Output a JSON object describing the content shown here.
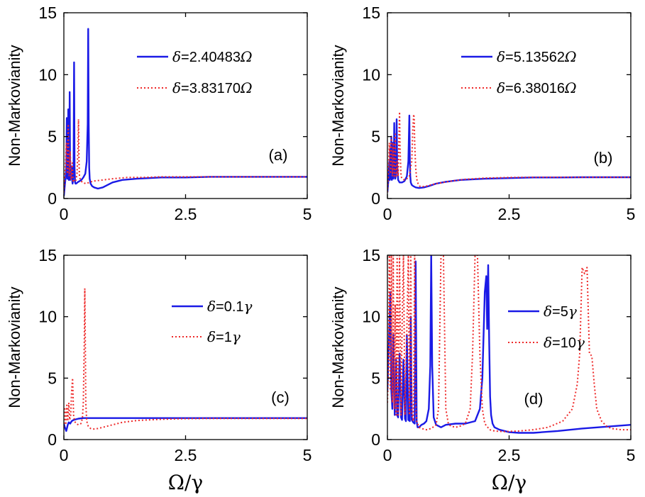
{
  "chart_data": [
    {
      "type": "line",
      "panel": "(a)",
      "xlabel": "",
      "ylabel": "Non-Markovianity",
      "xlim": [
        0,
        5
      ],
      "ylim": [
        0,
        15
      ],
      "xticks": [
        "0",
        "2.5",
        "5"
      ],
      "yticks": [
        "0",
        "5",
        "10",
        "15"
      ],
      "legend_position": "top-right",
      "series": [
        {
          "name": "δ=2.40483Ω",
          "symbol": "δ",
          "value": "=2.40483",
          "unit": "Ω",
          "style": "solid",
          "color": "#1a1ae6",
          "x": [
            0,
            0.03,
            0.05,
            0.06,
            0.07,
            0.08,
            0.09,
            0.1,
            0.11,
            0.12,
            0.13,
            0.14,
            0.15,
            0.16,
            0.17,
            0.18,
            0.19,
            0.2,
            0.21,
            0.22,
            0.23,
            0.24,
            0.25,
            0.28,
            0.32,
            0.36,
            0.4,
            0.44,
            0.47,
            0.49,
            0.5,
            0.51,
            0.52,
            0.53,
            0.55,
            0.58,
            0.62,
            0.7,
            0.8,
            0.9,
            1.0,
            1.2,
            1.5,
            2.0,
            2.5,
            3.0,
            3.5,
            4.0,
            4.5,
            5.0
          ],
          "y": [
            0.2,
            1.5,
            2.5,
            6.5,
            1.6,
            2.0,
            7.2,
            1.5,
            2.0,
            8.6,
            1.5,
            1.8,
            2.0,
            2.6,
            1.5,
            1.2,
            1.5,
            3.0,
            11.0,
            2.5,
            1.3,
            1.2,
            1.2,
            1.3,
            1.4,
            1.5,
            1.7,
            2.0,
            3.0,
            6.0,
            13.7,
            6.0,
            2.5,
            1.6,
            1.2,
            1.0,
            0.9,
            0.8,
            0.9,
            1.1,
            1.3,
            1.5,
            1.6,
            1.7,
            1.7,
            1.75,
            1.75,
            1.75,
            1.75,
            1.75
          ]
        },
        {
          "name": "δ=3.83170Ω",
          "symbol": "δ",
          "value": "=3.83170",
          "unit": "Ω",
          "style": "dotted",
          "color": "#ee2a2a",
          "x": [
            0,
            0.03,
            0.05,
            0.07,
            0.09,
            0.11,
            0.13,
            0.15,
            0.17,
            0.19,
            0.21,
            0.23,
            0.25,
            0.27,
            0.29,
            0.3,
            0.31,
            0.32,
            0.34,
            0.38,
            0.45,
            0.6,
            0.8,
            1.0,
            1.3,
            1.6,
            2.0,
            2.5,
            3.0,
            3.5,
            4.0,
            4.5,
            5.0
          ],
          "y": [
            0.5,
            2.5,
            4.5,
            2.0,
            6.0,
            1.8,
            3.8,
            1.5,
            3.0,
            1.3,
            1.5,
            1.4,
            1.5,
            2.0,
            4.0,
            6.4,
            3.0,
            1.8,
            1.5,
            1.3,
            1.2,
            1.4,
            1.5,
            1.6,
            1.7,
            1.7,
            1.75,
            1.75,
            1.75,
            1.75,
            1.75,
            1.75,
            1.75
          ]
        }
      ]
    },
    {
      "type": "line",
      "panel": "(b)",
      "xlabel": "",
      "ylabel": "Non-Markovianity",
      "xlim": [
        0,
        5
      ],
      "ylim": [
        0,
        15
      ],
      "xticks": [
        "0",
        "2.5",
        "5"
      ],
      "yticks": [
        "0",
        "5",
        "10",
        "15"
      ],
      "legend_position": "top-right",
      "series": [
        {
          "name": "δ=5.13562Ω",
          "symbol": "δ",
          "value": "=5.13562",
          "unit": "Ω",
          "style": "solid",
          "color": "#1a1ae6",
          "x": [
            0,
            0.02,
            0.04,
            0.05,
            0.06,
            0.07,
            0.08,
            0.09,
            0.1,
            0.11,
            0.12,
            0.13,
            0.14,
            0.15,
            0.16,
            0.17,
            0.18,
            0.19,
            0.2,
            0.22,
            0.25,
            0.3,
            0.35,
            0.4,
            0.43,
            0.45,
            0.46,
            0.47,
            0.48,
            0.5,
            0.53,
            0.58,
            0.65,
            0.75,
            0.85,
            1.0,
            1.2,
            1.5,
            2.0,
            2.5,
            3.0,
            3.5,
            4.0,
            4.5,
            5.0
          ],
          "y": [
            0.5,
            1.5,
            3.0,
            1.5,
            4.0,
            1.6,
            5.0,
            1.5,
            2.0,
            4.5,
            1.6,
            2.5,
            6.1,
            2.0,
            1.6,
            1.8,
            2.8,
            6.4,
            2.8,
            1.5,
            1.3,
            1.3,
            1.4,
            1.8,
            3.0,
            6.7,
            3.0,
            1.8,
            1.3,
            1.1,
            1.0,
            0.9,
            0.85,
            0.9,
            1.0,
            1.2,
            1.35,
            1.5,
            1.6,
            1.65,
            1.7,
            1.7,
            1.72,
            1.72,
            1.72
          ]
        },
        {
          "name": "δ=6.38016Ω",
          "symbol": "δ",
          "value": "=6.38016",
          "unit": "Ω",
          "style": "dotted",
          "color": "#ee2a2a",
          "x": [
            0,
            0.02,
            0.04,
            0.06,
            0.08,
            0.1,
            0.12,
            0.14,
            0.16,
            0.18,
            0.2,
            0.22,
            0.24,
            0.25,
            0.26,
            0.28,
            0.3,
            0.35,
            0.4,
            0.45,
            0.5,
            0.52,
            0.54,
            0.55,
            0.56,
            0.58,
            0.6,
            0.63,
            0.66,
            0.7,
            0.8,
            1.0,
            1.3,
            1.6,
            2.0,
            2.5,
            3.0,
            3.5,
            4.0,
            4.5,
            5.0
          ],
          "y": [
            0.5,
            2.0,
            4.5,
            2.0,
            5.0,
            1.8,
            4.5,
            1.8,
            5.2,
            1.8,
            3.0,
            1.8,
            5.5,
            7.0,
            4.0,
            1.8,
            1.6,
            1.5,
            1.6,
            1.8,
            3.0,
            5.5,
            6.8,
            6.5,
            4.5,
            2.5,
            1.6,
            1.2,
            1.0,
            0.95,
            1.0,
            1.2,
            1.4,
            1.55,
            1.65,
            1.7,
            1.72,
            1.72,
            1.72,
            1.72,
            1.72
          ]
        }
      ]
    },
    {
      "type": "line",
      "panel": "(c)",
      "xlabel": "Ω/γ",
      "ylabel": "Non-Markovianity",
      "xlim": [
        0,
        5
      ],
      "ylim": [
        0,
        15
      ],
      "xticks": [
        "0",
        "2.5",
        "5"
      ],
      "yticks": [
        "0",
        "5",
        "10",
        "15"
      ],
      "legend_position": "top-right",
      "series": [
        {
          "name": "δ=0.1γ",
          "symbol": "δ",
          "value": "=0.1",
          "unit": "γ",
          "style": "solid",
          "color": "#1a1ae6",
          "x": [
            0,
            0.02,
            0.05,
            0.08,
            0.1,
            0.13,
            0.16,
            0.2,
            0.25,
            0.3,
            0.4,
            0.5,
            0.6,
            0.8,
            1.0,
            1.5,
            2.0,
            2.5,
            3.0,
            3.5,
            4.0,
            4.5,
            5.0
          ],
          "y": [
            1.3,
            1.0,
            0.7,
            1.2,
            1.4,
            1.3,
            1.5,
            1.6,
            1.65,
            1.7,
            1.75,
            1.75,
            1.75,
            1.75,
            1.75,
            1.75,
            1.75,
            1.75,
            1.75,
            1.75,
            1.75,
            1.75,
            1.75
          ]
        },
        {
          "name": "δ=1γ",
          "symbol": "δ",
          "value": "=1",
          "unit": "γ",
          "style": "dotted",
          "color": "#ee2a2a",
          "x": [
            0,
            0.02,
            0.04,
            0.06,
            0.08,
            0.1,
            0.12,
            0.14,
            0.16,
            0.18,
            0.2,
            0.22,
            0.25,
            0.3,
            0.35,
            0.38,
            0.4,
            0.42,
            0.43,
            0.44,
            0.45,
            0.47,
            0.5,
            0.55,
            0.6,
            0.7,
            0.8,
            1.0,
            1.2,
            1.5,
            2.0,
            2.5,
            3.0,
            3.5,
            4.0,
            4.5,
            5.0
          ],
          "y": [
            1.0,
            2.5,
            1.2,
            2.8,
            1.5,
            3.0,
            1.6,
            2.0,
            4.0,
            5.0,
            2.0,
            1.5,
            1.3,
            1.2,
            1.3,
            1.7,
            3.0,
            8.0,
            12.3,
            8.0,
            3.0,
            1.5,
            1.1,
            0.9,
            0.85,
            0.9,
            1.0,
            1.2,
            1.4,
            1.55,
            1.65,
            1.7,
            1.72,
            1.72,
            1.72,
            1.72,
            1.72
          ]
        }
      ]
    },
    {
      "type": "line",
      "panel": "(d)",
      "xlabel": "Ω/γ",
      "ylabel": "Non-Markovianity",
      "xlim": [
        0,
        5
      ],
      "ylim": [
        0,
        15
      ],
      "xticks": [
        "0",
        "2.5",
        "5"
      ],
      "yticks": [
        "0",
        "5",
        "10",
        "15"
      ],
      "legend_position": "right",
      "series": [
        {
          "name": "δ=5γ",
          "symbol": "δ",
          "value": "=5",
          "unit": "γ",
          "style": "solid",
          "color": "#1a1ae6",
          "x": [
            0,
            0.03,
            0.06,
            0.08,
            0.1,
            0.12,
            0.15,
            0.18,
            0.2,
            0.22,
            0.25,
            0.28,
            0.3,
            0.33,
            0.36,
            0.38,
            0.4,
            0.43,
            0.46,
            0.48,
            0.5,
            0.53,
            0.56,
            0.58,
            0.6,
            0.62,
            0.65,
            0.7,
            0.75,
            0.8,
            0.85,
            0.88,
            0.9,
            0.92,
            0.95,
            1.0,
            1.1,
            1.2,
            1.4,
            1.6,
            1.8,
            1.9,
            1.95,
            2.0,
            2.03,
            2.05,
            2.07,
            2.09,
            2.11,
            2.13,
            2.16,
            2.2,
            2.3,
            2.5,
            2.7,
            3.0,
            3.5,
            4.0,
            4.5,
            5.0
          ],
          "y": [
            4.0,
            8.0,
            12.0,
            4.0,
            2.5,
            8.5,
            2.0,
            6.5,
            2.0,
            1.8,
            7.0,
            1.8,
            1.6,
            6.5,
            1.7,
            1.5,
            8.5,
            1.6,
            1.5,
            10.0,
            1.6,
            1.4,
            1.3,
            14.5,
            1.5,
            1.0,
            1.0,
            1.2,
            1.3,
            1.5,
            2.5,
            6.0,
            15.0,
            6.0,
            1.8,
            1.2,
            1.0,
            1.2,
            1.3,
            1.3,
            1.5,
            2.5,
            5.0,
            12.0,
            13.3,
            9.0,
            14.2,
            8.0,
            3.5,
            2.0,
            1.3,
            1.0,
            0.8,
            0.6,
            0.55,
            0.55,
            0.7,
            0.9,
            1.05,
            1.2
          ]
        },
        {
          "name": "δ=10γ",
          "symbol": "δ",
          "value": "=10",
          "unit": "γ",
          "style": "dotted",
          "color": "#ee2a2a",
          "x": [
            0,
            0.02,
            0.04,
            0.06,
            0.08,
            0.1,
            0.12,
            0.14,
            0.16,
            0.18,
            0.2,
            0.22,
            0.25,
            0.28,
            0.3,
            0.33,
            0.36,
            0.4,
            0.43,
            0.45,
            0.48,
            0.5,
            0.53,
            0.56,
            0.58,
            0.6,
            0.65,
            0.7,
            0.8,
            0.9,
            1.0,
            1.05,
            1.1,
            1.15,
            1.2,
            1.25,
            1.3,
            1.4,
            1.5,
            1.6,
            1.7,
            1.75,
            1.8,
            1.85,
            1.9,
            1.95,
            2.0,
            2.1,
            2.2,
            2.4,
            2.7,
            3.0,
            3.3,
            3.6,
            3.8,
            3.9,
            3.95,
            4.0,
            4.05,
            4.1,
            4.15,
            4.2,
            4.25,
            4.3,
            4.4,
            4.5,
            4.6,
            4.8,
            5.0
          ],
          "y": [
            3.0,
            6.0,
            15.0,
            4.0,
            15.0,
            3.0,
            15.0,
            2.5,
            11.0,
            2.0,
            15.0,
            2.0,
            15.0,
            2.0,
            9.0,
            15.0,
            2.0,
            9.0,
            15.0,
            2.0,
            15.0,
            2.0,
            1.5,
            15.0,
            3.0,
            1.5,
            1.0,
            0.9,
            0.8,
            0.9,
            1.2,
            2.5,
            15.0,
            15.0,
            2.5,
            1.3,
            1.1,
            1.0,
            1.1,
            1.3,
            2.5,
            7.0,
            15.0,
            15.0,
            7.0,
            2.5,
            1.3,
            0.8,
            0.7,
            0.65,
            0.7,
            0.8,
            1.0,
            1.5,
            2.5,
            4.5,
            7.0,
            14.0,
            13.5,
            14.0,
            7.0,
            6.8,
            4.5,
            2.5,
            1.5,
            1.1,
            0.9,
            0.8,
            0.8
          ]
        }
      ]
    }
  ]
}
